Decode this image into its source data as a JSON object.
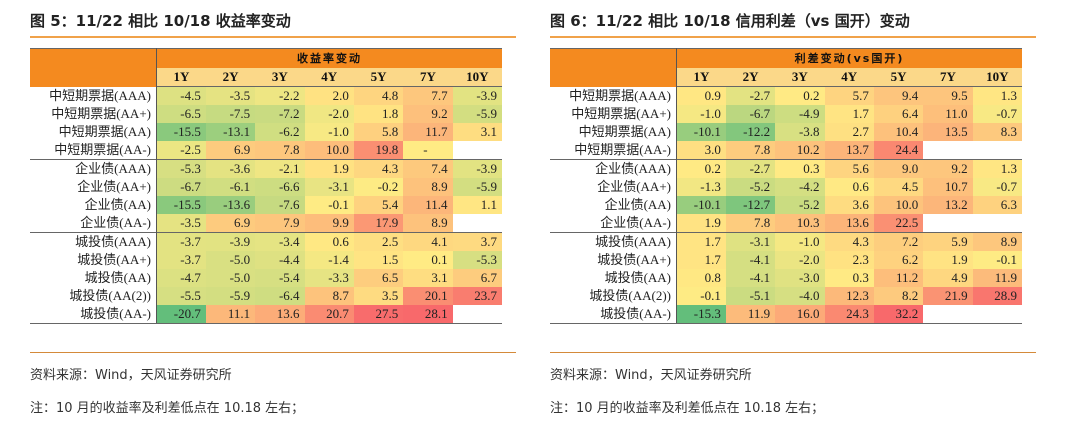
{
  "left": {
    "title": "图 5：11/22 相比 10/18 收益率变动",
    "header": "收益率变动",
    "tenors": [
      "1Y",
      "2Y",
      "3Y",
      "4Y",
      "5Y",
      "7Y",
      "10Y"
    ],
    "rows": [
      {
        "label": "中短期票据(AAA)",
        "values": [
          "-4.5",
          "-3.5",
          "-2.2",
          "2.0",
          "4.8",
          "7.7",
          "-3.9"
        ]
      },
      {
        "label": "中短期票据(AA+)",
        "values": [
          "-6.5",
          "-7.5",
          "-7.2",
          "-2.0",
          "1.8",
          "9.2",
          "-5.9"
        ]
      },
      {
        "label": "中短期票据(AA)",
        "values": [
          "-15.5",
          "-13.1",
          "-6.2",
          "-1.0",
          "5.8",
          "11.7",
          "3.1"
        ]
      },
      {
        "label": "中短期票据(AA-)",
        "values": [
          "-2.5",
          "6.9",
          "7.8",
          "10.0",
          "19.8",
          "-",
          ""
        ]
      },
      {
        "label": "企业债(AAA)",
        "values": [
          "-5.3",
          "-3.6",
          "-2.1",
          "1.9",
          "4.3",
          "7.4",
          "-3.9"
        ]
      },
      {
        "label": "企业债(AA+)",
        "values": [
          "-6.7",
          "-6.1",
          "-6.6",
          "-3.1",
          "-0.2",
          "8.9",
          "-5.9"
        ]
      },
      {
        "label": "企业债(AA)",
        "values": [
          "-15.5",
          "-13.6",
          "-7.6",
          "-0.1",
          "5.4",
          "11.4",
          "1.1"
        ]
      },
      {
        "label": "企业债(AA-)",
        "values": [
          "-3.5",
          "6.9",
          "7.9",
          "9.9",
          "17.9",
          "8.9",
          ""
        ]
      },
      {
        "label": "城投债(AAA)",
        "values": [
          "-3.7",
          "-3.9",
          "-3.4",
          "0.6",
          "2.5",
          "4.1",
          "3.7"
        ]
      },
      {
        "label": "城投债(AA+)",
        "values": [
          "-3.7",
          "-5.0",
          "-4.4",
          "-1.4",
          "1.5",
          "0.1",
          "-5.3"
        ]
      },
      {
        "label": "城投债(AA)",
        "values": [
          "-4.7",
          "-5.0",
          "-5.4",
          "-3.3",
          "6.5",
          "3.1",
          "6.7"
        ]
      },
      {
        "label": "城投债(AA(2))",
        "values": [
          "-5.5",
          "-5.9",
          "-6.4",
          "8.7",
          "3.5",
          "20.1",
          "23.7"
        ]
      },
      {
        "label": "城投债(AA-)",
        "values": [
          "-20.7",
          "11.1",
          "13.6",
          "20.7",
          "27.5",
          "28.1",
          ""
        ]
      }
    ],
    "source": "资料来源：Wind，天风证券研究所",
    "note": "注：10 月的收益率及利差低点在 10.18 左右；"
  },
  "right": {
    "title": "图 6：11/22 相比 10/18 信用利差（vs 国开）变动",
    "header": "利差变动(vs国开)",
    "tenors": [
      "1Y",
      "2Y",
      "3Y",
      "4Y",
      "5Y",
      "7Y",
      "10Y"
    ],
    "rows": [
      {
        "label": "中短期票据(AAA)",
        "values": [
          "0.9",
          "-2.7",
          "0.2",
          "5.7",
          "9.4",
          "9.5",
          "1.3"
        ]
      },
      {
        "label": "中短期票据(AA+)",
        "values": [
          "-1.0",
          "-6.7",
          "-4.9",
          "1.7",
          "6.4",
          "11.0",
          "-0.7"
        ]
      },
      {
        "label": "中短期票据(AA)",
        "values": [
          "-10.1",
          "-12.2",
          "-3.8",
          "2.7",
          "10.4",
          "13.5",
          "8.3"
        ]
      },
      {
        "label": "中短期票据(AA-)",
        "values": [
          "3.0",
          "7.8",
          "10.2",
          "13.7",
          "24.4",
          "",
          ""
        ]
      },
      {
        "label": "企业债(AAA)",
        "values": [
          "0.2",
          "-2.7",
          "0.3",
          "5.6",
          "9.0",
          "9.2",
          "1.3"
        ]
      },
      {
        "label": "企业债(AA+)",
        "values": [
          "-1.3",
          "-5.2",
          "-4.2",
          "0.6",
          "4.5",
          "10.7",
          "-0.7"
        ]
      },
      {
        "label": "企业债(AA)",
        "values": [
          "-10.1",
          "-12.7",
          "-5.2",
          "3.6",
          "10.0",
          "13.2",
          "6.3"
        ]
      },
      {
        "label": "企业债(AA-)",
        "values": [
          "1.9",
          "7.8",
          "10.3",
          "13.6",
          "22.5",
          "",
          ""
        ]
      },
      {
        "label": "城投债(AAA)",
        "values": [
          "1.7",
          "-3.1",
          "-1.0",
          "4.3",
          "7.2",
          "5.9",
          "8.9"
        ]
      },
      {
        "label": "城投债(AA+)",
        "values": [
          "1.7",
          "-4.1",
          "-2.0",
          "2.3",
          "6.2",
          "1.9",
          "-0.1"
        ]
      },
      {
        "label": "城投债(AA)",
        "values": [
          "0.8",
          "-4.1",
          "-3.0",
          "0.3",
          "11.2",
          "4.9",
          "11.9"
        ]
      },
      {
        "label": "城投债(AA(2))",
        "values": [
          "-0.1",
          "-5.1",
          "-4.0",
          "12.3",
          "8.2",
          "21.9",
          "28.9"
        ]
      },
      {
        "label": "城投债(AA-)",
        "values": [
          "-15.3",
          "11.9",
          "16.0",
          "24.3",
          "32.2",
          "",
          ""
        ]
      }
    ],
    "source": "资料来源：Wind，天风证券研究所",
    "note": "注：10 月的收益率及利差低点在 10.18 左右；"
  },
  "colors": {
    "header_orange": "#f48a1f",
    "tenor_yellow": "#fbd889",
    "scale_green": "#63be7b",
    "scale_yellow": "#ffeb84",
    "scale_red": "#f8696b"
  }
}
